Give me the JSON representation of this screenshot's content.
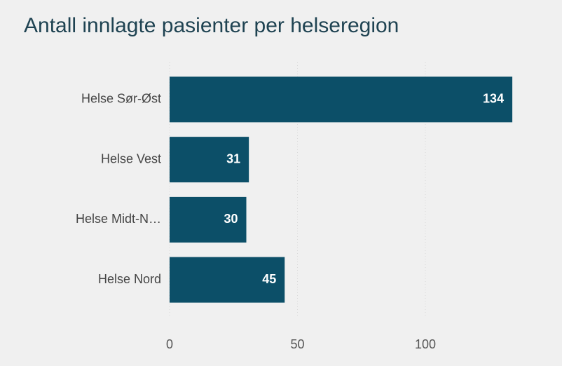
{
  "chart_data": {
    "type": "bar",
    "orientation": "horizontal",
    "title": "Antall innlagte pasienter per helseregion",
    "categories": [
      "Helse Sør-Øst",
      "Helse Vest",
      "Helse Midt-N…",
      "Helse Nord"
    ],
    "values": [
      134,
      31,
      30,
      45
    ],
    "color": "#0c4f68",
    "xlim": [
      0,
      140
    ],
    "xticks": [
      0,
      50,
      100
    ],
    "grid": true
  }
}
